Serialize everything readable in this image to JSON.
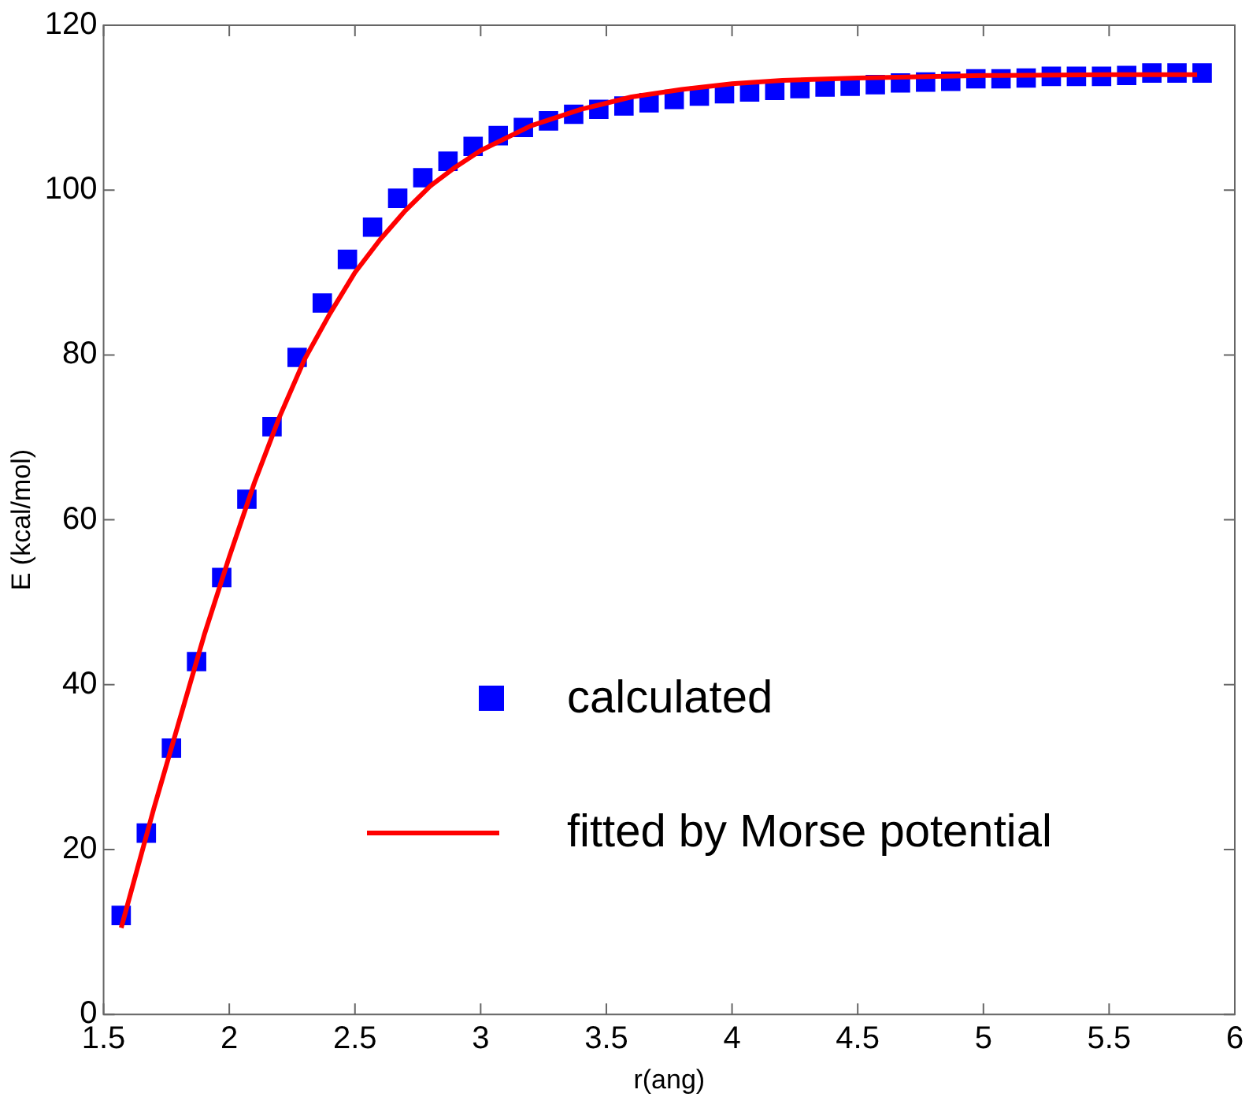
{
  "chart_data": {
    "type": "scatter",
    "xlabel": "r(ang)",
    "ylabel": "E (kcal/mol)",
    "xlim": [
      1.5,
      6
    ],
    "xticks": [
      1.5,
      2,
      2.5,
      3,
      3.5,
      4,
      4.5,
      5,
      5.5,
      6
    ],
    "ylim": [
      0,
      120
    ],
    "yticks": [
      0,
      20,
      40,
      60,
      80,
      100,
      120
    ],
    "grid": false,
    "legend": "center",
    "series": [
      {
        "name": "calculated",
        "marker": "square",
        "color": "#0000ff",
        "x": [
          1.57,
          1.67,
          1.77,
          1.87,
          1.97,
          2.07,
          2.17,
          2.27,
          2.37,
          2.47,
          2.57,
          2.67,
          2.77,
          2.87,
          2.97,
          3.07,
          3.17,
          3.27,
          3.37,
          3.47,
          3.57,
          3.67,
          3.77,
          3.87,
          3.97,
          4.07,
          4.17,
          4.27,
          4.37,
          4.47,
          4.57,
          4.67,
          4.77,
          4.87,
          4.97,
          5.07,
          5.17,
          5.27,
          5.37,
          5.47,
          5.57,
          5.67,
          5.77,
          5.87
        ],
        "values": [
          12,
          22,
          32.3,
          42.8,
          53,
          62.5,
          71.3,
          79.7,
          86.3,
          91.6,
          95.5,
          99,
          101.5,
          103.5,
          105.3,
          106.6,
          107.6,
          108.4,
          109.2,
          109.8,
          110.2,
          110.6,
          111,
          111.4,
          111.7,
          111.9,
          112.1,
          112.3,
          112.5,
          112.6,
          112.8,
          113,
          113.1,
          113.2,
          113.5,
          113.5,
          113.6,
          113.8,
          113.8,
          113.8,
          113.9,
          114.2,
          114.2,
          114.2
        ]
      },
      {
        "name": "fitted by Morse potential",
        "type": "line",
        "marker": "none",
        "line_style": "solid",
        "color": "#ff0000",
        "x": [
          1.57,
          1.7,
          1.8,
          1.9,
          2.0,
          2.1,
          2.2,
          2.3,
          2.4,
          2.5,
          2.6,
          2.7,
          2.8,
          2.9,
          3.0,
          3.2,
          3.4,
          3.6,
          3.8,
          4.0,
          4.2,
          4.5,
          5.0,
          5.5,
          5.85
        ],
        "values": [
          10.5,
          25,
          35.5,
          46,
          55.5,
          64.5,
          72.5,
          79.5,
          85,
          90,
          94,
          97.5,
          100.5,
          102.8,
          104.8,
          107.8,
          109.8,
          111.3,
          112.2,
          112.9,
          113.3,
          113.6,
          113.9,
          114,
          114
        ]
      }
    ]
  }
}
